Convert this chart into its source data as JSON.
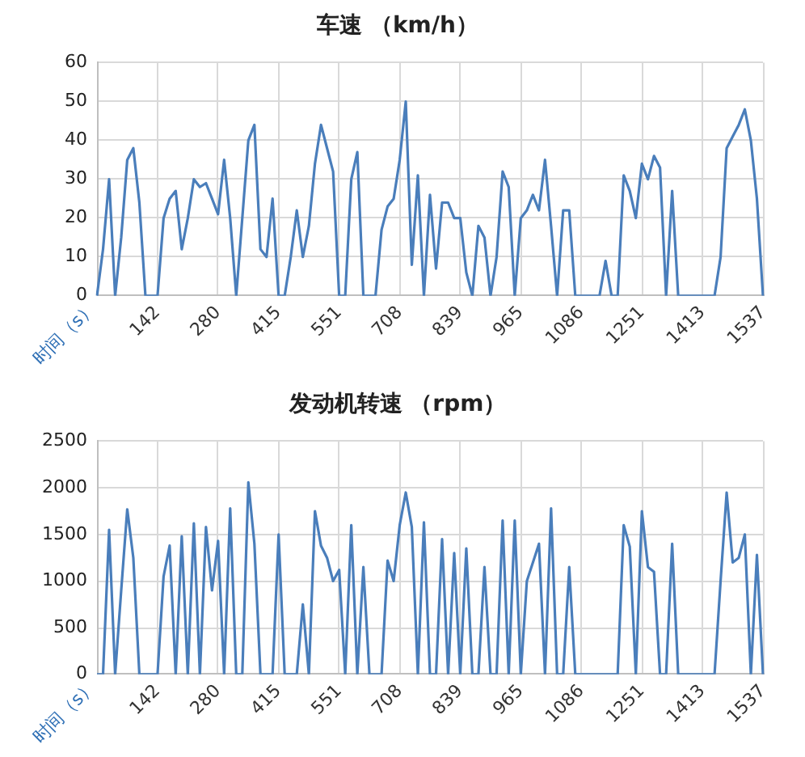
{
  "chart_data": [
    {
      "type": "line",
      "title": "车速 （km/h）",
      "xlabel": "时间（s）",
      "color": "#4a7ebb",
      "grid": true,
      "ylim": [
        0,
        60
      ],
      "yticks": [
        0,
        10,
        20,
        30,
        40,
        50,
        60
      ],
      "categories": [
        null,
        null,
        null,
        null,
        null,
        null,
        null,
        null,
        null,
        null,
        "142",
        null,
        null,
        null,
        null,
        null,
        null,
        null,
        null,
        null,
        "280",
        null,
        null,
        null,
        null,
        null,
        null,
        null,
        null,
        null,
        "415",
        null,
        null,
        null,
        null,
        null,
        null,
        null,
        null,
        null,
        "551",
        null,
        null,
        null,
        null,
        null,
        null,
        null,
        null,
        null,
        "708",
        null,
        null,
        null,
        null,
        null,
        null,
        null,
        null,
        null,
        "839",
        null,
        null,
        null,
        null,
        null,
        null,
        null,
        null,
        null,
        "965",
        null,
        null,
        null,
        null,
        null,
        null,
        null,
        null,
        null,
        "1086",
        null,
        null,
        null,
        null,
        null,
        null,
        null,
        null,
        null,
        "1251",
        null,
        null,
        null,
        null,
        null,
        null,
        null,
        null,
        null,
        "1413",
        null,
        null,
        null,
        null,
        null,
        null,
        null,
        null,
        null,
        "1537"
      ],
      "values": [
        0,
        12,
        30,
        0,
        15,
        35,
        38,
        24,
        0,
        0,
        0,
        20,
        25,
        27,
        12,
        20,
        30,
        28,
        29,
        25,
        21,
        35,
        20,
        0,
        20,
        40,
        44,
        12,
        10,
        25,
        0,
        0,
        10,
        22,
        10,
        18,
        34,
        44,
        38,
        32,
        0,
        0,
        30,
        37,
        0,
        0,
        0,
        17,
        23,
        25,
        35,
        50,
        8,
        31,
        0,
        26,
        7,
        24,
        24,
        20,
        20,
        6,
        0,
        18,
        15,
        0,
        10,
        32,
        28,
        0,
        20,
        22,
        26,
        22,
        35,
        18,
        0,
        22,
        22,
        0,
        0,
        0,
        0,
        0,
        9,
        0,
        0,
        31,
        27,
        20,
        34,
        30,
        36,
        33,
        0,
        27,
        0,
        0,
        0,
        0,
        0,
        0,
        0,
        10,
        38,
        41,
        44,
        48,
        40,
        25,
        0
      ]
    },
    {
      "type": "line",
      "title": "发动机转速 （rpm）",
      "xlabel": "时间（s）",
      "color": "#4a7ebb",
      "grid": true,
      "ylim": [
        0,
        2500
      ],
      "yticks": [
        0,
        500,
        1000,
        1500,
        2000,
        2500
      ],
      "categories": [
        null,
        null,
        null,
        null,
        null,
        null,
        null,
        null,
        null,
        null,
        "142",
        null,
        null,
        null,
        null,
        null,
        null,
        null,
        null,
        null,
        "280",
        null,
        null,
        null,
        null,
        null,
        null,
        null,
        null,
        null,
        "415",
        null,
        null,
        null,
        null,
        null,
        null,
        null,
        null,
        null,
        "551",
        null,
        null,
        null,
        null,
        null,
        null,
        null,
        null,
        null,
        "708",
        null,
        null,
        null,
        null,
        null,
        null,
        null,
        null,
        null,
        "839",
        null,
        null,
        null,
        null,
        null,
        null,
        null,
        null,
        null,
        "965",
        null,
        null,
        null,
        null,
        null,
        null,
        null,
        null,
        null,
        "1086",
        null,
        null,
        null,
        null,
        null,
        null,
        null,
        null,
        null,
        "1251",
        null,
        null,
        null,
        null,
        null,
        null,
        null,
        null,
        null,
        "1413",
        null,
        null,
        null,
        null,
        null,
        null,
        null,
        null,
        null,
        "1537"
      ],
      "values": [
        0,
        0,
        1550,
        0,
        900,
        1770,
        1250,
        0,
        0,
        0,
        0,
        1050,
        1380,
        0,
        1480,
        0,
        1620,
        0,
        1580,
        900,
        1430,
        0,
        1780,
        0,
        0,
        2060,
        1400,
        0,
        0,
        0,
        1500,
        0,
        0,
        0,
        750,
        0,
        1750,
        1380,
        1250,
        1000,
        1120,
        0,
        1600,
        0,
        1150,
        0,
        0,
        0,
        1220,
        1000,
        1600,
        1950,
        1580,
        0,
        1630,
        0,
        0,
        1450,
        0,
        1300,
        0,
        1350,
        0,
        0,
        1150,
        0,
        0,
        1650,
        0,
        1650,
        0,
        1000,
        1200,
        1400,
        0,
        1780,
        0,
        0,
        1150,
        0,
        0,
        0,
        0,
        0,
        0,
        0,
        0,
        1600,
        1370,
        0,
        1750,
        1150,
        1100,
        0,
        0,
        1400,
        0,
        0,
        0,
        0,
        0,
        0,
        0,
        1000,
        1950,
        1200,
        1250,
        1500,
        0,
        1280,
        0
      ]
    }
  ]
}
